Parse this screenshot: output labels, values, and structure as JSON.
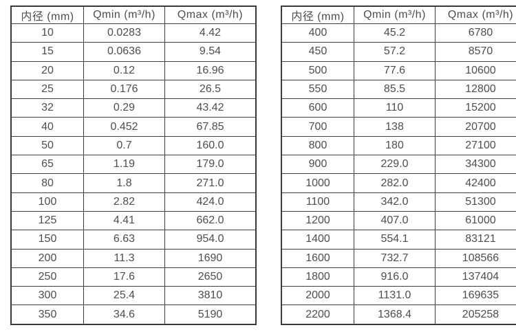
{
  "colors": {
    "background": "#ffffff",
    "border": "#3c3c3c",
    "text": "#4d4d4d"
  },
  "tables": [
    {
      "name": "diameter-flow-table-small",
      "headers": [
        "内径 (mm)",
        "Qmin (m³/h)",
        "Qmax (m³/h)"
      ],
      "rows": [
        [
          "10",
          "0.0283",
          "4.42"
        ],
        [
          "15",
          "0.0636",
          "9.54"
        ],
        [
          "20",
          "0.12",
          "16.96"
        ],
        [
          "25",
          "0.176",
          "26.5"
        ],
        [
          "32",
          "0.29",
          "43.42"
        ],
        [
          "40",
          "0.452",
          "67.85"
        ],
        [
          "50",
          "0.7",
          "160.0"
        ],
        [
          "65",
          "1.19",
          "179.0"
        ],
        [
          "80",
          "1.8",
          "271.0"
        ],
        [
          "100",
          "2.82",
          "424.0"
        ],
        [
          "125",
          "4.41",
          "662.0"
        ],
        [
          "150",
          "6.63",
          "954.0"
        ],
        [
          "200",
          "11.3",
          "1690"
        ],
        [
          "250",
          "17.6",
          "2650"
        ],
        [
          "300",
          "25.4",
          "3810"
        ],
        [
          "350",
          "34.6",
          "5190"
        ]
      ]
    },
    {
      "name": "diameter-flow-table-large",
      "headers": [
        "内径 (mm)",
        "Qmin (m³/h)",
        "Qmax (m³/h)"
      ],
      "rows": [
        [
          "400",
          "45.2",
          "6780"
        ],
        [
          "450",
          "57.2",
          "8570"
        ],
        [
          "500",
          "77.6",
          "10600"
        ],
        [
          "550",
          "85.5",
          "12800"
        ],
        [
          "600",
          "110",
          "15200"
        ],
        [
          "700",
          "138",
          "20700"
        ],
        [
          "800",
          "180",
          "27100"
        ],
        [
          "900",
          "229.0",
          "34300"
        ],
        [
          "1000",
          "282.0",
          "42400"
        ],
        [
          "1100",
          "342.0",
          "51300"
        ],
        [
          "1200",
          "407.0",
          "61000"
        ],
        [
          "1400",
          "554.1",
          "83121"
        ],
        [
          "1600",
          "732.7",
          "108566"
        ],
        [
          "1800",
          "916.0",
          "137404"
        ],
        [
          "2000",
          "1131.0",
          "169635"
        ],
        [
          "2200",
          "1368.4",
          "205258"
        ]
      ]
    }
  ]
}
